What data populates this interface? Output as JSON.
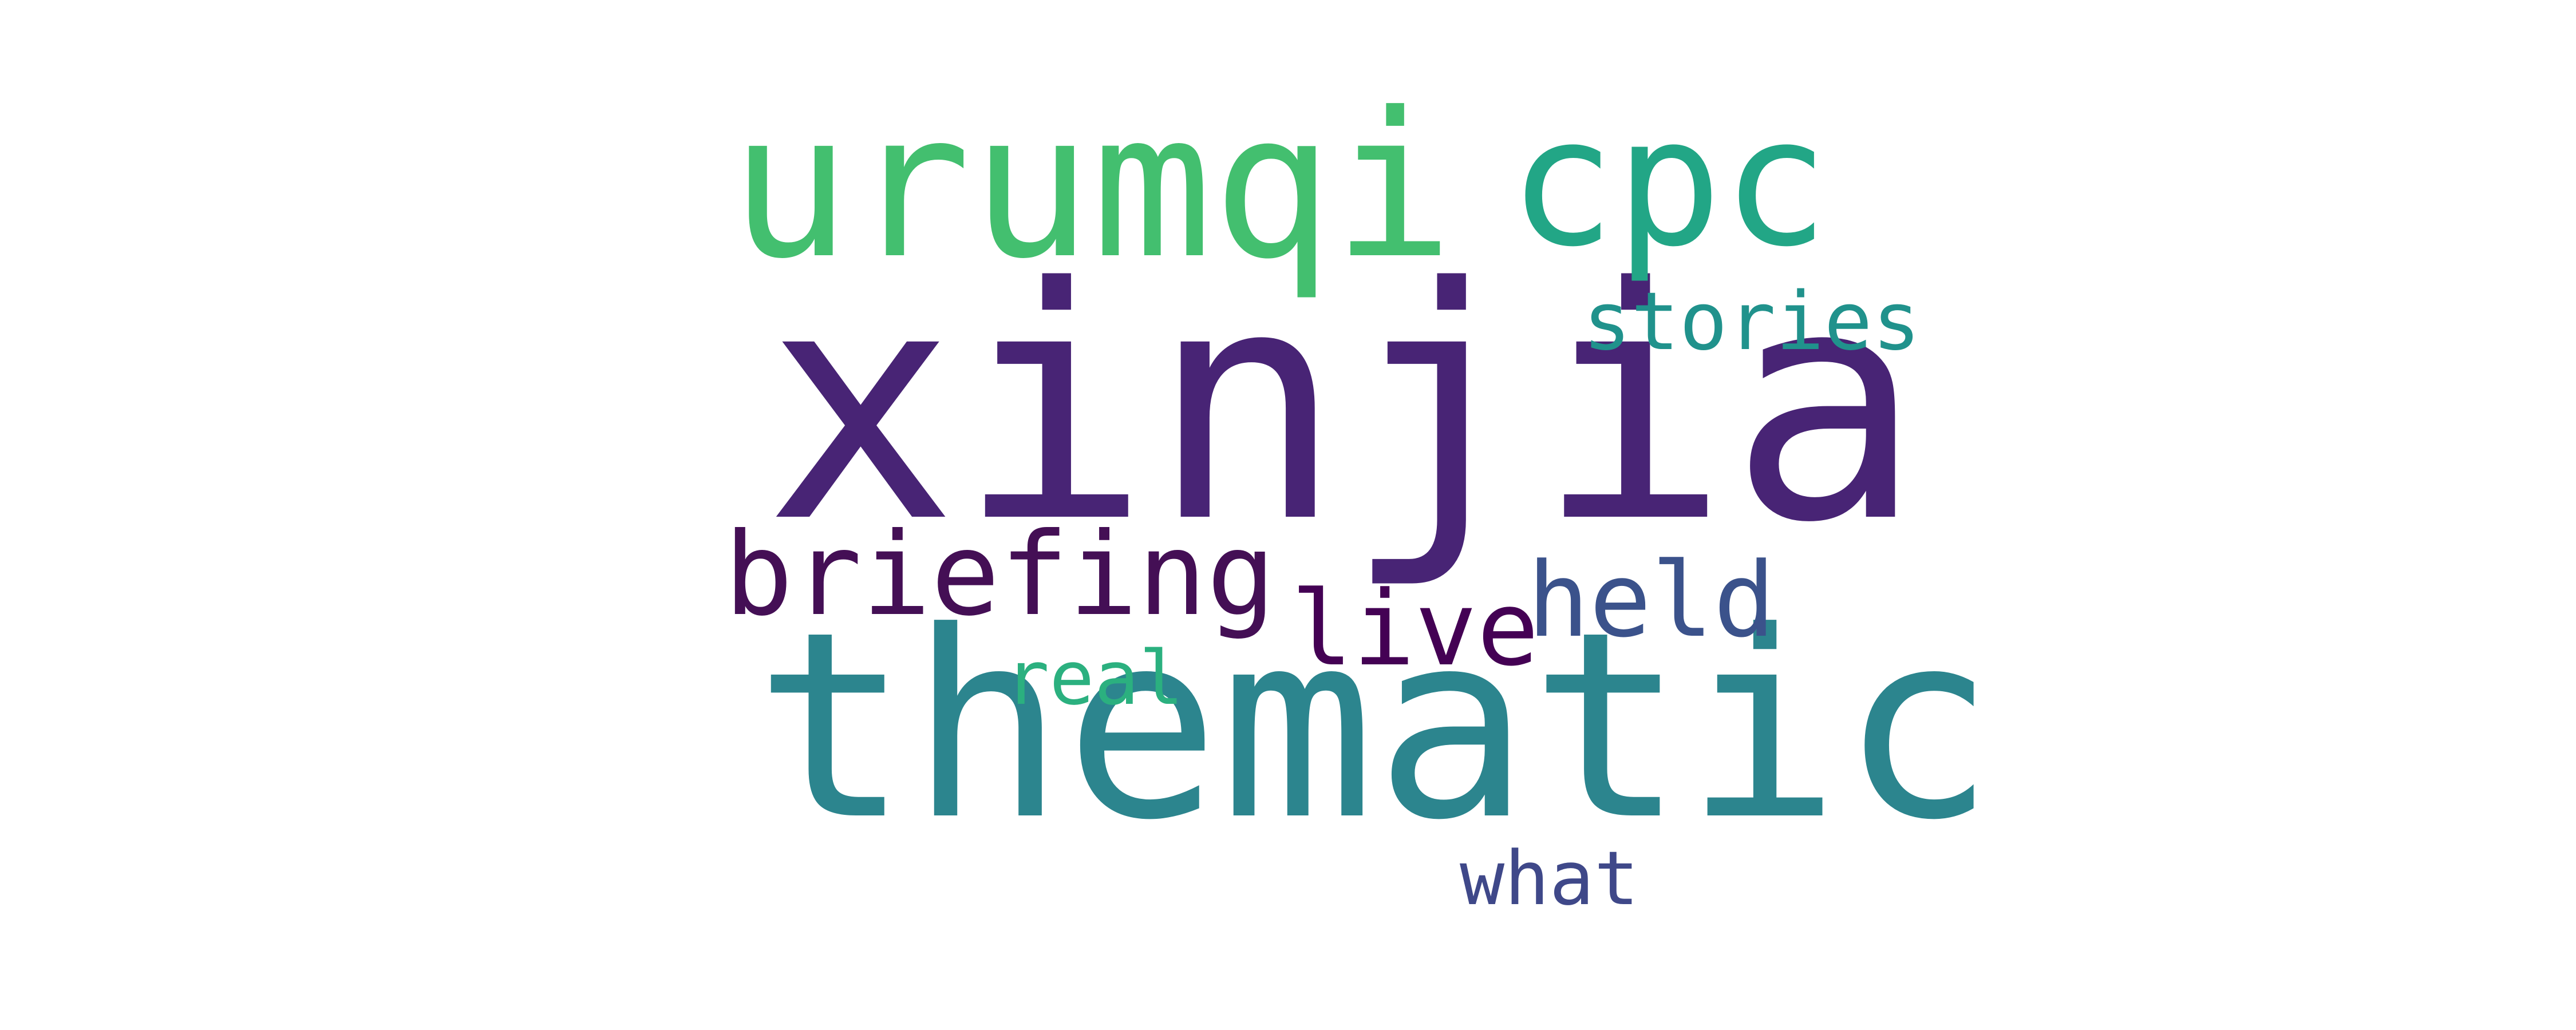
{
  "words": [
    {
      "id": "xinjia",
      "text": "xinjia",
      "color": "#482475"
    },
    {
      "id": "thematic",
      "text": "thematic",
      "color": "#2c858e"
    },
    {
      "id": "urumqi",
      "text": "urumqi",
      "color": "#43bf6f"
    },
    {
      "id": "cpc",
      "text": "cpc",
      "color": "#22a686"
    },
    {
      "id": "briefing",
      "text": "briefing",
      "color": "#440f55"
    },
    {
      "id": "held",
      "text": "held",
      "color": "#3b528b"
    },
    {
      "id": "live",
      "text": "live",
      "color": "#440154"
    },
    {
      "id": "stories",
      "text": "stories",
      "color": "#20928c"
    },
    {
      "id": "real",
      "text": "real",
      "color": "#2bb07f"
    },
    {
      "id": "what",
      "text": "what",
      "color": "#3f4889"
    }
  ]
}
